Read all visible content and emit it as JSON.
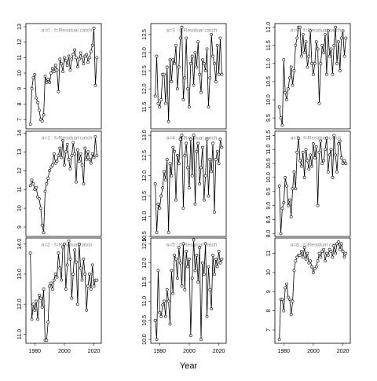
{
  "xlabel": "Year",
  "chart_data": [
    {
      "type": "line",
      "annotation": "a=0  :  f=Residual catch",
      "color": "#000000",
      "markers": true,
      "x": [
        1977,
        1978,
        1979,
        1980,
        1981,
        1982,
        1983,
        1984,
        1985,
        1986,
        1987,
        1988,
        1989,
        1990,
        1991,
        1992,
        1993,
        1994,
        1995,
        1996,
        1997,
        1998,
        1999,
        2000,
        2001,
        2002,
        2003,
        2004,
        2005,
        2006,
        2007,
        2008,
        2009,
        2010,
        2011,
        2012,
        2013,
        2014,
        2015,
        2016,
        2017,
        2018,
        2019,
        2020,
        2021,
        2022
      ],
      "values": [
        6.7,
        9.0,
        9.7,
        9.9,
        8.4,
        8.1,
        7.6,
        7.0,
        6.9,
        7.3,
        9.8,
        9.4,
        9.6,
        9.4,
        10.0,
        10.3,
        10.1,
        10.5,
        10.2,
        8.8,
        10.9,
        10.6,
        10.1,
        11.0,
        10.8,
        10.5,
        11.1,
        10.2,
        10.9,
        11.2,
        11.5,
        11.0,
        10.4,
        10.9,
        11.3,
        11.0,
        10.6,
        11.1,
        11.2,
        10.7,
        11.0,
        11.4,
        11.8,
        12.9,
        9.2,
        11.0
      ],
      "xlim": [
        1974,
        2025
      ],
      "ylim": [
        6.4,
        13.2
      ],
      "yticks": [
        7,
        8,
        9,
        10,
        11,
        12,
        13
      ]
    },
    {
      "type": "line",
      "annotation": "a=1  :  f=Residual catch",
      "color": "#000000",
      "markers": true,
      "x": [
        1977,
        1978,
        1979,
        1980,
        1981,
        1982,
        1983,
        1984,
        1985,
        1986,
        1987,
        1988,
        1989,
        1990,
        1991,
        1992,
        1993,
        1994,
        1995,
        1996,
        1997,
        1998,
        1999,
        2000,
        2001,
        2002,
        2003,
        2004,
        2005,
        2006,
        2007,
        2008,
        2009,
        2010,
        2011,
        2012,
        2013,
        2014,
        2015,
        2016,
        2017,
        2018,
        2019,
        2020,
        2021,
        2022
      ],
      "values": [
        11.2,
        11.5,
        11.3,
        11.0,
        11.1,
        10.6,
        10.5,
        10.0,
        9.1,
        8.7,
        10.9,
        11.3,
        11.6,
        12.0,
        12.2,
        12.3,
        12.9,
        12.4,
        12.5,
        12.8,
        13.2,
        12.7,
        13.6,
        12.3,
        13.0,
        13.4,
        12.6,
        12.1,
        12.8,
        13.5,
        12.9,
        11.4,
        13.1,
        12.5,
        12.9,
        12.3,
        11.3,
        13.2,
        12.6,
        13.0,
        12.6,
        12.4,
        12.9,
        12.7,
        13.8,
        12.8
      ],
      "xlim": [
        1974,
        2025
      ],
      "ylim": [
        8.5,
        14.1
      ],
      "yticks": [
        9,
        10,
        11,
        12,
        13,
        14
      ]
    },
    {
      "type": "line",
      "annotation": "a=2  :  f=Residual catch",
      "color": "#000000",
      "markers": true,
      "x": [
        1977,
        1978,
        1979,
        1980,
        1981,
        1982,
        1983,
        1984,
        1985,
        1986,
        1987,
        1988,
        1989,
        1990,
        1991,
        1992,
        1993,
        1994,
        1995,
        1996,
        1997,
        1998,
        1999,
        2000,
        2001,
        2002,
        2003,
        2004,
        2005,
        2006,
        2007,
        2008,
        2009,
        2010,
        2011,
        2012,
        2013,
        2014,
        2015,
        2016,
        2017,
        2018,
        2019,
        2020,
        2021,
        2022
      ],
      "values": [
        13.7,
        11.5,
        12.0,
        11.8,
        12.1,
        11.5,
        12.3,
        12.2,
        11.9,
        12.5,
        10.8,
        10.8,
        11.4,
        12.6,
        12.7,
        12.5,
        12.8,
        13.0,
        12.9,
        13.7,
        13.2,
        12.8,
        13.9,
        14.0,
        12.5,
        13.3,
        14.1,
        13.5,
        12.2,
        13.0,
        13.8,
        13.4,
        12.0,
        14.0,
        13.2,
        12.8,
        13.5,
        13.0,
        11.8,
        12.6,
        13.0,
        12.5,
        13.3,
        12.6,
        12.8,
        12.8
      ],
      "xlim": [
        1974,
        2025
      ],
      "ylim": [
        10.7,
        14.2
      ],
      "yticks": [
        {
          "value": 11,
          "label": "11.0"
        },
        {
          "value": 12,
          "label": "12.0"
        },
        {
          "value": 13,
          "label": "13.0"
        },
        {
          "value": 14,
          "label": "14.0"
        }
      ],
      "xticks": [
        1980,
        2000,
        2020
      ]
    },
    {
      "type": "line",
      "annotation": "a=3  :  f=Residual catch",
      "color": "#000000",
      "markers": true,
      "x": [
        1977,
        1978,
        1979,
        1980,
        1981,
        1982,
        1983,
        1984,
        1985,
        1986,
        1987,
        1988,
        1989,
        1990,
        1991,
        1992,
        1993,
        1994,
        1995,
        1996,
        1997,
        1998,
        1999,
        2000,
        2001,
        2002,
        2003,
        2004,
        2005,
        2006,
        2007,
        2008,
        2009,
        2010,
        2011,
        2012,
        2013,
        2014,
        2015,
        2016,
        2017,
        2018,
        2019,
        2020,
        2021,
        2022
      ],
      "values": [
        11.8,
        12.9,
        11.6,
        11.5,
        11.7,
        12.4,
        12.4,
        11.6,
        12.6,
        11.1,
        12.8,
        12.2,
        12.8,
        12.7,
        13.2,
        12.0,
        12.6,
        13.4,
        13.7,
        11.7,
        12.3,
        13.4,
        12.0,
        11.5,
        12.7,
        12.9,
        12.1,
        13.0,
        12.6,
        13.3,
        12.4,
        11.9,
        12.8,
        12.7,
        12.5,
        13.1,
        11.5,
        12.3,
        13.5,
        12.9,
        12.7,
        12.2,
        13.2,
        12.4,
        13.4,
        12.4
      ],
      "xlim": [
        1974,
        2025
      ],
      "ylim": [
        10.9,
        13.8
      ],
      "yticks": [
        11.5,
        {
          "value": 12,
          "label": "12.0"
        },
        12.5,
        {
          "value": 13,
          "label": "13.0"
        },
        13.5
      ]
    },
    {
      "type": "line",
      "annotation": "a=4  :  f=Residual catch",
      "color": "#000000",
      "markers": true,
      "x": [
        1977,
        1978,
        1979,
        1980,
        1981,
        1982,
        1983,
        1984,
        1985,
        1986,
        1987,
        1988,
        1989,
        1990,
        1991,
        1992,
        1993,
        1994,
        1995,
        1996,
        1997,
        1998,
        1999,
        2000,
        2001,
        2002,
        2003,
        2004,
        2005,
        2006,
        2007,
        2008,
        2009,
        2010,
        2011,
        2012,
        2013,
        2014,
        2015,
        2016,
        2017,
        2018,
        2019,
        2020,
        2021,
        2022
      ],
      "values": [
        11.8,
        10.6,
        11.3,
        11.2,
        11.5,
        11.7,
        12.1,
        11.9,
        12.4,
        10.6,
        12.3,
        12.0,
        12.7,
        12.6,
        11.4,
        12.5,
        12.3,
        12.9,
        13.0,
        11.2,
        12.5,
        12.8,
        12.2,
        11.7,
        12.9,
        12.0,
        13.0,
        11.3,
        12.6,
        12.8,
        11.8,
        12.2,
        12.7,
        11.4,
        12.0,
        12.9,
        11.5,
        12.4,
        12.1,
        12.8,
        11.1,
        12.4,
        12.6,
        12.3,
        12.9,
        12.7
      ],
      "xlim": [
        1974,
        2025
      ],
      "ylim": [
        10.5,
        13.1
      ],
      "yticks": [
        10.5,
        {
          "value": 11,
          "label": "11.0"
        },
        11.5,
        {
          "value": 12,
          "label": "12.0"
        },
        12.5,
        {
          "value": 13,
          "label": "13.0"
        }
      ]
    },
    {
      "type": "line",
      "annotation": "a=5  :  f=Residual catch",
      "color": "#000000",
      "markers": true,
      "x": [
        1977,
        1978,
        1979,
        1980,
        1981,
        1982,
        1983,
        1984,
        1985,
        1986,
        1987,
        1988,
        1989,
        1990,
        1991,
        1992,
        1993,
        1994,
        1995,
        1996,
        1997,
        1998,
        1999,
        2000,
        2001,
        2002,
        2003,
        2004,
        2005,
        2006,
        2007,
        2008,
        2009,
        2010,
        2011,
        2012,
        2013,
        2014,
        2015,
        2016,
        2017,
        2018,
        2019,
        2020,
        2021,
        2022
      ],
      "values": [
        10.5,
        10.0,
        11.8,
        10.7,
        10.6,
        10.9,
        11.0,
        10.6,
        11.3,
        11.0,
        10.4,
        11.8,
        11.2,
        12.2,
        12.1,
        11.6,
        12.4,
        12.0,
        11.4,
        12.5,
        11.3,
        12.3,
        11.9,
        12.1,
        10.1,
        11.6,
        12.6,
        11.8,
        12.2,
        11.5,
        12.4,
        10.0,
        12.0,
        11.7,
        12.5,
        10.6,
        11.9,
        11.3,
        10.8,
        12.2,
        11.7,
        12.1,
        11.9,
        12.3,
        12.0,
        12.1
      ],
      "xlim": [
        1974,
        2025
      ],
      "ylim": [
        9.9,
        12.65
      ],
      "yticks": [
        {
          "value": 10,
          "label": "10.0"
        },
        10.5,
        {
          "value": 11,
          "label": "11.0"
        },
        11.5,
        {
          "value": 12,
          "label": "12.0"
        },
        12.5
      ],
      "xticks": [
        1980,
        2000,
        2020
      ]
    },
    {
      "type": "line",
      "annotation": "a=6  :  f=Residual catch",
      "color": "#000000",
      "markers": true,
      "x": [
        1977,
        1978,
        1979,
        1980,
        1981,
        1982,
        1983,
        1984,
        1985,
        1986,
        1987,
        1988,
        1989,
        1990,
        1991,
        1992,
        1993,
        1994,
        1995,
        1996,
        1997,
        1998,
        1999,
        2000,
        2001,
        2002,
        2003,
        2004,
        2005,
        2006,
        2007,
        2008,
        2009,
        2010,
        2011,
        2012,
        2013,
        2014,
        2015,
        2016,
        2017,
        2018,
        2019,
        2020,
        2021,
        2022
      ],
      "values": [
        9.8,
        9.5,
        9.3,
        11.1,
        10.2,
        10.0,
        10.3,
        10.6,
        10.9,
        10.4,
        10.8,
        11.5,
        11.7,
        12.0,
        12.0,
        11.2,
        11.8,
        11.3,
        11.6,
        10.9,
        11.2,
        11.9,
        11.0,
        10.7,
        11.0,
        11.6,
        11.4,
        9.9,
        11.0,
        11.5,
        11.3,
        11.8,
        10.7,
        11.9,
        11.2,
        11.4,
        10.7,
        11.5,
        12.0,
        11.0,
        11.6,
        10.8,
        11.7,
        11.9,
        11.2,
        11.7
      ],
      "xlim": [
        1974,
        2025
      ],
      "ylim": [
        9.2,
        12.1
      ],
      "yticks": [
        9.5,
        {
          "value": 10,
          "label": "10.0"
        },
        10.5,
        {
          "value": 11,
          "label": "11.0"
        },
        11.5,
        {
          "value": 12,
          "label": "12.0"
        }
      ]
    },
    {
      "type": "line",
      "annotation": "a=7  :  f=Residual catch",
      "color": "#000000",
      "markers": true,
      "x": [
        1977,
        1978,
        1979,
        1980,
        1981,
        1982,
        1983,
        1984,
        1985,
        1986,
        1987,
        1988,
        1989,
        1990,
        1991,
        1992,
        1993,
        1994,
        1995,
        1996,
        1997,
        1998,
        1999,
        2000,
        2001,
        2002,
        2003,
        2004,
        2005,
        2006,
        2007,
        2008,
        2009,
        2010,
        2011,
        2012,
        2013,
        2014,
        2015,
        2016,
        2017,
        2018,
        2019,
        2020,
        2021,
        2022
      ],
      "values": [
        9.7,
        8.0,
        8.9,
        9.1,
        10.0,
        9.7,
        9.0,
        9.2,
        8.6,
        9.6,
        10.2,
        9.6,
        10.9,
        11.4,
        10.6,
        10.4,
        10.9,
        10.0,
        11.0,
        10.6,
        10.3,
        10.8,
        10.4,
        11.2,
        10.7,
        11.1,
        9.0,
        10.9,
        11.3,
        10.5,
        10.6,
        11.0,
        11.4,
        10.2,
        10.8,
        11.0,
        10.0,
        11.5,
        10.8,
        10.2,
        11.2,
        11.3,
        10.7,
        10.5,
        10.6,
        10.5
      ],
      "xlim": [
        1974,
        2025
      ],
      "ylim": [
        7.9,
        11.65
      ],
      "yticks": [
        {
          "value": 8,
          "label": "8.0"
        },
        8.5,
        {
          "value": 9,
          "label": "9.0"
        },
        9.5,
        {
          "value": 10,
          "label": "10.0"
        },
        10.5,
        {
          "value": 11,
          "label": "11.0"
        },
        11.5
      ]
    },
    {
      "type": "line",
      "annotation": "a=8  :  f=Residual catch",
      "color": "#000000",
      "markers": true,
      "x": [
        1977,
        1978,
        1979,
        1980,
        1981,
        1982,
        1983,
        1984,
        1985,
        1986,
        1987,
        1988,
        1989,
        1990,
        1991,
        1992,
        1993,
        1994,
        1995,
        1996,
        1997,
        1998,
        1999,
        2000,
        2001,
        2002,
        2003,
        2004,
        2005,
        2006,
        2007,
        2008,
        2009,
        2010,
        2011,
        2012,
        2013,
        2014,
        2015,
        2016,
        2017,
        2018,
        2019,
        2020,
        2021,
        2022
      ],
      "values": [
        6.5,
        8.6,
        8.6,
        8.0,
        9.2,
        9.4,
        8.7,
        8.6,
        7.8,
        8.5,
        10.1,
        10.6,
        10.8,
        10.9,
        10.9,
        11.1,
        10.8,
        11.3,
        10.7,
        11.0,
        10.5,
        10.6,
        10.3,
        10.0,
        10.2,
        10.3,
        10.6,
        11.0,
        10.8,
        11.1,
        11.2,
        10.6,
        11.0,
        10.9,
        11.2,
        11.1,
        10.8,
        11.4,
        11.0,
        11.5,
        11.6,
        11.2,
        11.5,
        11.1,
        10.8,
        11.0
      ],
      "xlim": [
        1974,
        2025
      ],
      "ylim": [
        6.3,
        11.8
      ],
      "yticks": [
        7,
        8,
        9,
        10,
        11
      ],
      "xticks": [
        1980,
        2000,
        2020
      ]
    }
  ]
}
